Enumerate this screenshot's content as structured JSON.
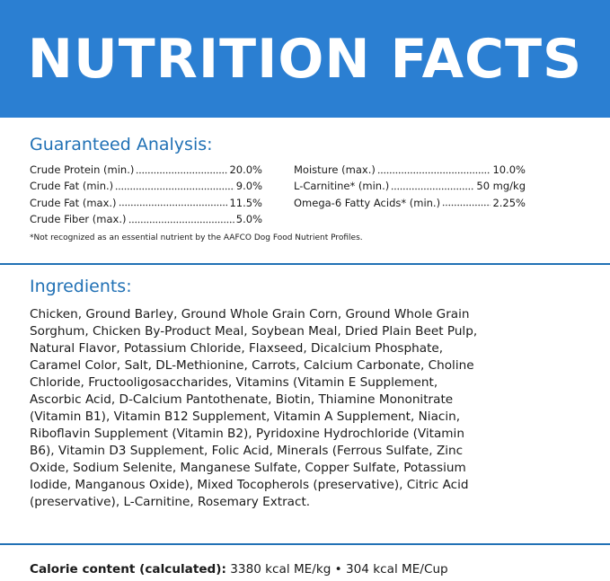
{
  "header": {
    "title": "NUTRITION FACTS"
  },
  "guaranteed_analysis": {
    "heading": "Guaranteed Analysis:",
    "columns": [
      [
        {
          "label": "Crude Protein (min.)",
          "value": "20.0%"
        },
        {
          "label": "Crude Fat (min.)",
          "value": "9.0%"
        },
        {
          "label": "Crude Fat (max.)",
          "value": "11.5%"
        },
        {
          "label": "Crude Fiber (max.)",
          "value": "5.0%"
        }
      ],
      [
        {
          "label": "Moisture (max.)",
          "value": "10.0%"
        },
        {
          "label": "L-Carnitine* (min.)",
          "value": "50 mg/kg"
        },
        {
          "label": "Omega-6 Fatty Acids* (min.)",
          "value": "2.25%"
        }
      ]
    ],
    "footnote": "*Not recognized as an essential nutrient by the AAFCO Dog Food Nutrient Profiles."
  },
  "ingredients": {
    "heading": "Ingredients:",
    "text": "Chicken, Ground Barley, Ground Whole Grain Corn, Ground Whole Grain Sorghum, Chicken By-Product Meal, Soybean Meal, Dried Plain Beet Pulp, Natural Flavor, Potassium Chloride, Flaxseed, Dicalcium Phosphate, Caramel Color, Salt, DL-Methionine, Carrots, Calcium Carbonate, Choline Chloride, Fructooligosaccharides, Vitamins (Vitamin E Supplement, Ascorbic Acid, D-Calcium Pantothenate, Biotin, Thiamine Mononitrate (Vitamin B1), Vitamin B12 Supplement, Vitamin A Supplement, Niacin, Riboflavin Supplement (Vitamin B2), Pyridoxine Hydrochloride (Vitamin B6), Vitamin D3 Supplement, Folic Acid, Minerals (Ferrous Sulfate, Zinc Oxide, Sodium Selenite, Manganese Sulfate, Copper Sulfate, Potassium Iodide, Manganous Oxide), Mixed Tocopherols (preservative), Citric Acid (preservative), L-Carnitine, Rosemary Extract."
  },
  "calorie": {
    "label": "Calorie content (calculated):",
    "value": "3380 kcal ME/kg • 304 kcal ME/Cup"
  }
}
